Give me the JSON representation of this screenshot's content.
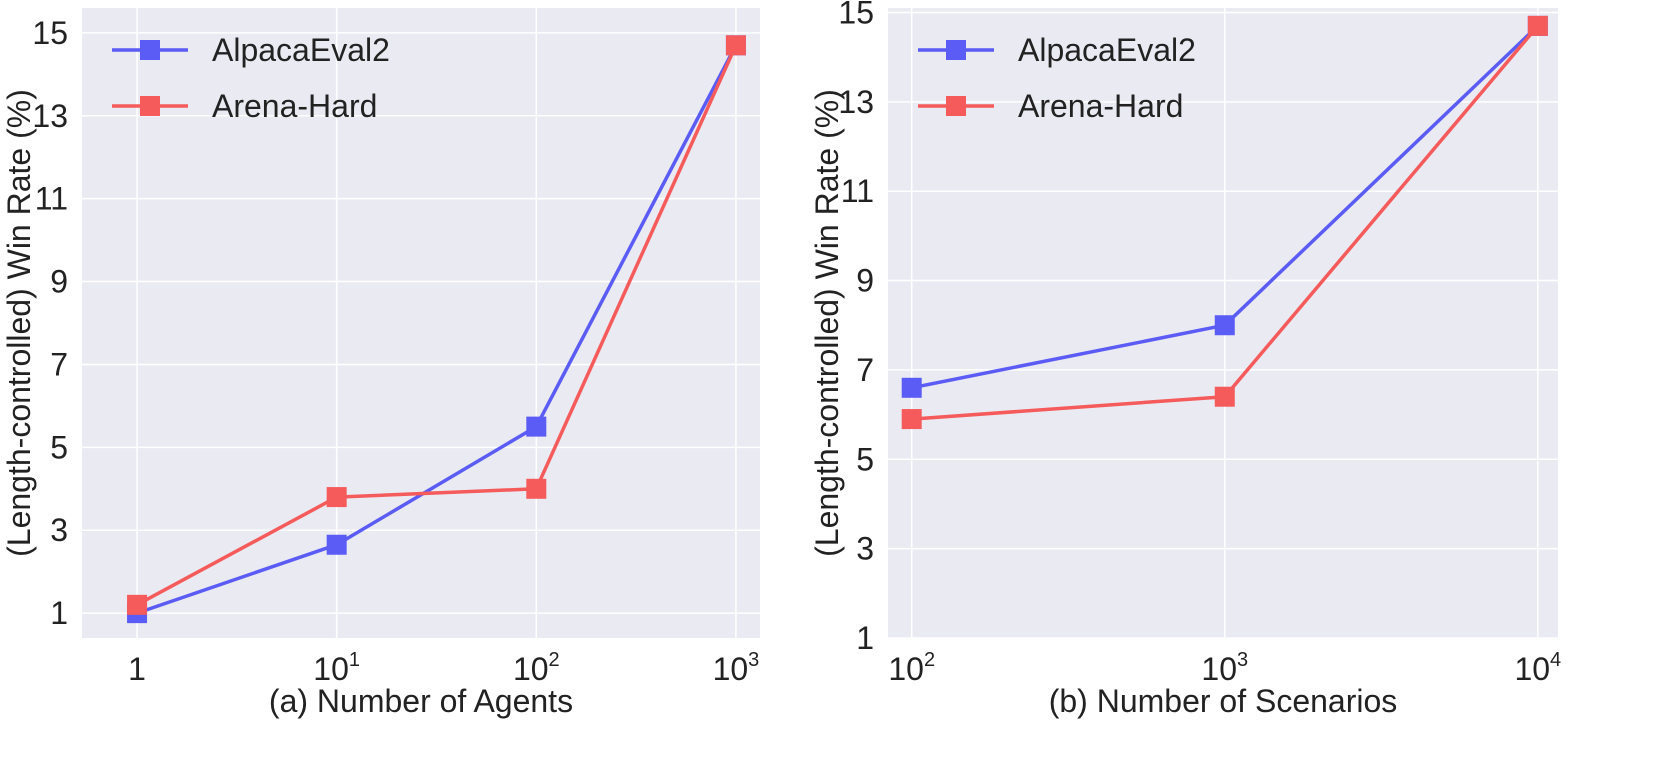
{
  "colors": {
    "plot_background": "#EAEAF2",
    "grid": "#FFFFFF",
    "text": "#222222"
  },
  "chart_data": [
    {
      "type": "line",
      "xscale": "log",
      "xlabel": "(a) Number of Agents",
      "ylabel": "(Length-controlled) Win Rate (%)",
      "x": [
        1,
        10,
        100,
        1000
      ],
      "xticks": [
        {
          "value": 1,
          "base": "1",
          "exp": ""
        },
        {
          "value": 10,
          "base": "10",
          "exp": "1"
        },
        {
          "value": 100,
          "base": "10",
          "exp": "2"
        },
        {
          "value": 1000,
          "base": "10",
          "exp": "3"
        }
      ],
      "yticks": [
        1,
        3,
        5,
        7,
        9,
        11,
        13,
        15
      ],
      "xlim": [
        0.53,
        1320
      ],
      "ylim": [
        0.4,
        15.6
      ],
      "grid": true,
      "legend": "top-left",
      "series": [
        {
          "name": "AlpacaEval2",
          "color": "#5B5BF5",
          "values": [
            1.0,
            2.65,
            5.5,
            14.7
          ]
        },
        {
          "name": "Arena-Hard",
          "color": "#F55B5B",
          "values": [
            1.2,
            3.8,
            4.0,
            14.7
          ]
        }
      ]
    },
    {
      "type": "line",
      "xscale": "log",
      "xlabel": "(b) Number of Scenarios",
      "ylabel": "(Length-controlled) Win Rate (%)",
      "x": [
        100,
        1000,
        10000
      ],
      "xticks": [
        {
          "value": 100,
          "base": "10",
          "exp": "2"
        },
        {
          "value": 1000,
          "base": "10",
          "exp": "3"
        },
        {
          "value": 10000,
          "base": "10",
          "exp": "4"
        }
      ],
      "yticks": [
        1,
        3,
        5,
        7,
        9,
        11,
        13,
        15
      ],
      "xlim": [
        84,
        11600
      ],
      "ylim": [
        1.0,
        15.1
      ],
      "grid": true,
      "legend": "top-left",
      "series": [
        {
          "name": "AlpacaEval2",
          "color": "#5B5BF5",
          "values": [
            6.6,
            8.0,
            14.7
          ]
        },
        {
          "name": "Arena-Hard",
          "color": "#F55B5B",
          "values": [
            5.9,
            6.4,
            14.7
          ]
        }
      ]
    }
  ]
}
